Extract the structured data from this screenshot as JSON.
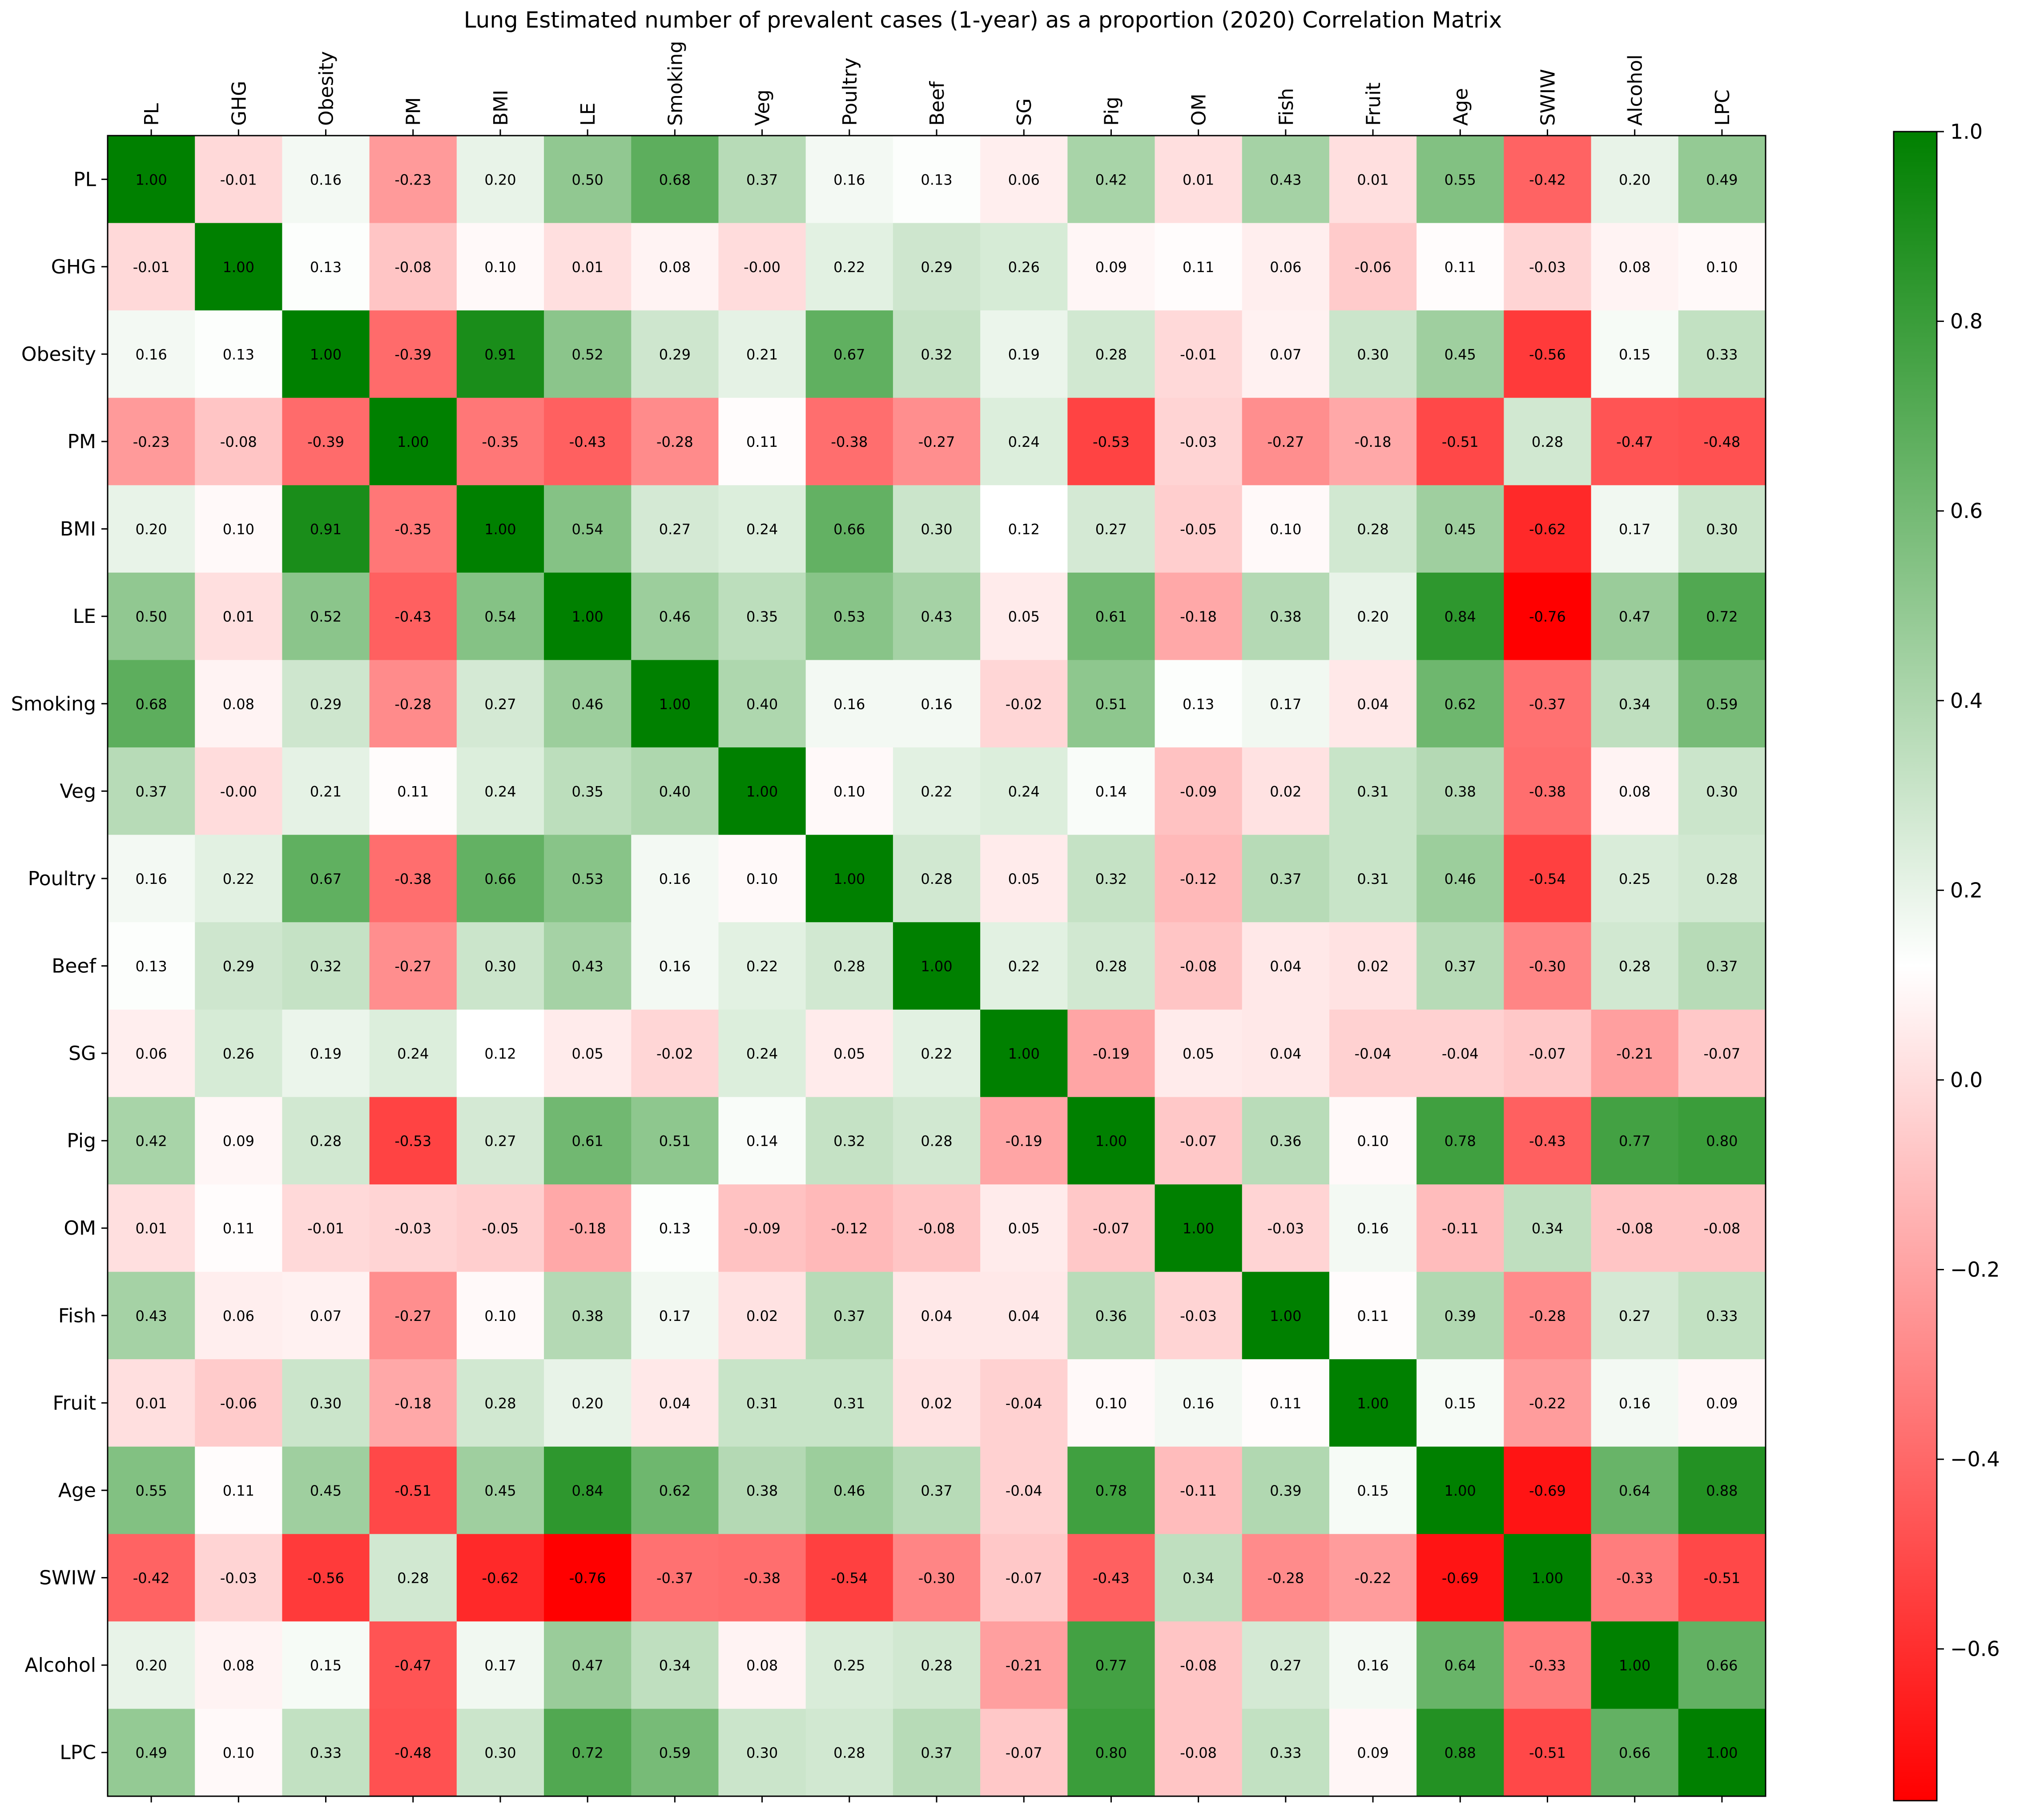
{
  "chart_data": {
    "type": "heatmap",
    "title": "Lung Estimated number of prevalent cases (1-year) as a proportion (2020) Correlation Matrix",
    "labels": [
      "PL",
      "GHG",
      "Obesity",
      "PM",
      "BMI",
      "LE",
      "Smoking",
      "Veg",
      "Poultry",
      "Beef",
      "SG",
      "Pig",
      "OM",
      "Fish",
      "Fruit",
      "Age",
      "SWIW",
      "Alcohol",
      "LPC"
    ],
    "matrix": [
      [
        1.0,
        -0.01,
        0.16,
        -0.23,
        0.2,
        0.5,
        0.68,
        0.37,
        0.16,
        0.13,
        0.06,
        0.42,
        0.01,
        0.43,
        0.01,
        0.55,
        -0.42,
        0.2,
        0.49
      ],
      [
        -0.01,
        1.0,
        0.13,
        -0.08,
        0.1,
        0.01,
        0.08,
        -0.0,
        0.22,
        0.29,
        0.26,
        0.09,
        0.11,
        0.06,
        -0.06,
        0.11,
        -0.03,
        0.08,
        0.1
      ],
      [
        0.16,
        0.13,
        1.0,
        -0.39,
        0.91,
        0.52,
        0.29,
        0.21,
        0.67,
        0.32,
        0.19,
        0.28,
        -0.01,
        0.07,
        0.3,
        0.45,
        -0.56,
        0.15,
        0.33
      ],
      [
        -0.23,
        -0.08,
        -0.39,
        1.0,
        -0.35,
        -0.43,
        -0.28,
        0.11,
        -0.38,
        -0.27,
        0.24,
        -0.53,
        -0.03,
        -0.27,
        -0.18,
        -0.51,
        0.28,
        -0.47,
        -0.48
      ],
      [
        0.2,
        0.1,
        0.91,
        -0.35,
        1.0,
        0.54,
        0.27,
        0.24,
        0.66,
        0.3,
        0.12,
        0.27,
        -0.05,
        0.1,
        0.28,
        0.45,
        -0.62,
        0.17,
        0.3
      ],
      [
        0.5,
        0.01,
        0.52,
        -0.43,
        0.54,
        1.0,
        0.46,
        0.35,
        0.53,
        0.43,
        0.05,
        0.61,
        -0.18,
        0.38,
        0.2,
        0.84,
        -0.76,
        0.47,
        0.72
      ],
      [
        0.68,
        0.08,
        0.29,
        -0.28,
        0.27,
        0.46,
        1.0,
        0.4,
        0.16,
        0.16,
        -0.02,
        0.51,
        0.13,
        0.17,
        0.04,
        0.62,
        -0.37,
        0.34,
        0.59
      ],
      [
        0.37,
        -0.0,
        0.21,
        0.11,
        0.24,
        0.35,
        0.4,
        1.0,
        0.1,
        0.22,
        0.24,
        0.14,
        -0.09,
        0.02,
        0.31,
        0.38,
        -0.38,
        0.08,
        0.3
      ],
      [
        0.16,
        0.22,
        0.67,
        -0.38,
        0.66,
        0.53,
        0.16,
        0.1,
        1.0,
        0.28,
        0.05,
        0.32,
        -0.12,
        0.37,
        0.31,
        0.46,
        -0.54,
        0.25,
        0.28
      ],
      [
        0.13,
        0.29,
        0.32,
        -0.27,
        0.3,
        0.43,
        0.16,
        0.22,
        0.28,
        1.0,
        0.22,
        0.28,
        -0.08,
        0.04,
        0.02,
        0.37,
        -0.3,
        0.28,
        0.37
      ],
      [
        0.06,
        0.26,
        0.19,
        0.24,
        0.12,
        0.05,
        -0.02,
        0.24,
        0.05,
        0.22,
        1.0,
        -0.19,
        0.05,
        0.04,
        -0.04,
        -0.04,
        -0.07,
        -0.21,
        -0.07
      ],
      [
        0.42,
        0.09,
        0.28,
        -0.53,
        0.27,
        0.61,
        0.51,
        0.14,
        0.32,
        0.28,
        -0.19,
        1.0,
        -0.07,
        0.36,
        0.1,
        0.78,
        -0.43,
        0.77,
        0.8
      ],
      [
        0.01,
        0.11,
        -0.01,
        -0.03,
        -0.05,
        -0.18,
        0.13,
        -0.09,
        -0.12,
        -0.08,
        0.05,
        -0.07,
        1.0,
        -0.03,
        0.16,
        -0.11,
        0.34,
        -0.08,
        -0.08
      ],
      [
        0.43,
        0.06,
        0.07,
        -0.27,
        0.1,
        0.38,
        0.17,
        0.02,
        0.37,
        0.04,
        0.04,
        0.36,
        -0.03,
        1.0,
        0.11,
        0.39,
        -0.28,
        0.27,
        0.33
      ],
      [
        0.01,
        -0.06,
        0.3,
        -0.18,
        0.28,
        0.2,
        0.04,
        0.31,
        0.31,
        0.02,
        -0.04,
        0.1,
        0.16,
        0.11,
        1.0,
        0.15,
        -0.22,
        0.16,
        0.09
      ],
      [
        0.55,
        0.11,
        0.45,
        -0.51,
        0.45,
        0.84,
        0.62,
        0.38,
        0.46,
        0.37,
        -0.04,
        0.78,
        -0.11,
        0.39,
        0.15,
        1.0,
        -0.69,
        0.64,
        0.88
      ],
      [
        -0.42,
        -0.03,
        -0.56,
        0.28,
        -0.62,
        -0.76,
        -0.37,
        -0.38,
        -0.54,
        -0.3,
        -0.07,
        -0.43,
        0.34,
        -0.28,
        -0.22,
        -0.69,
        1.0,
        -0.33,
        -0.51
      ],
      [
        0.2,
        0.08,
        0.15,
        -0.47,
        0.17,
        0.47,
        0.34,
        0.08,
        0.25,
        0.28,
        -0.21,
        0.77,
        -0.08,
        0.27,
        0.16,
        0.64,
        -0.33,
        1.0,
        0.66
      ],
      [
        0.49,
        0.1,
        0.33,
        -0.48,
        0.3,
        0.72,
        0.59,
        0.3,
        0.28,
        0.37,
        -0.07,
        0.8,
        -0.08,
        0.33,
        0.09,
        0.88,
        -0.51,
        0.66,
        1.0
      ]
    ],
    "value_range": [
      -0.76,
      1.0
    ],
    "colorbar": {
      "ticks": [
        1.0,
        0.8,
        0.6,
        0.4,
        0.2,
        0.0,
        -0.2,
        -0.4,
        -0.6
      ],
      "tick_labels": [
        "1.0",
        "0.8",
        "0.6",
        "0.4",
        "0.2",
        "0.0",
        "−0.2",
        "−0.4",
        "−0.6"
      ],
      "colors": {
        "low": "#ff0000",
        "mid": "#ffffff",
        "high": "#008000"
      },
      "placement": "right"
    },
    "x_tick_position": "top",
    "cell_label_format": "2-decimal"
  }
}
